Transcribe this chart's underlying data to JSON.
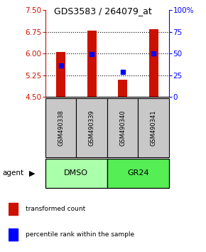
{
  "title": "GDS3583 / 264079_at",
  "categories": [
    "GSM490338",
    "GSM490339",
    "GSM490340",
    "GSM490341"
  ],
  "bar_values": [
    6.05,
    6.8,
    5.1,
    6.85
  ],
  "bar_bottom": 4.5,
  "bar_color": "#cc1100",
  "blue_marker_values": [
    5.6,
    5.97,
    5.37,
    6.0
  ],
  "blue_marker_color": "#0000ff",
  "ylim_left": [
    4.5,
    7.5
  ],
  "ylim_right": [
    0,
    100
  ],
  "yticks_left": [
    4.5,
    5.25,
    6.0,
    6.75,
    7.5
  ],
  "yticks_right": [
    0,
    25,
    50,
    75,
    100
  ],
  "ytick_labels_right": [
    "0",
    "25",
    "50",
    "75",
    "100%"
  ],
  "grid_lines": [
    5.25,
    6.0,
    6.75
  ],
  "dmso_color": "#aaffaa",
  "gr24_color": "#55ee55",
  "gray_color": "#c8c8c8",
  "agent_text": "agent",
  "legend_items": [
    {
      "color": "#cc1100",
      "label": "transformed count"
    },
    {
      "color": "#0000ff",
      "label": "percentile rank within the sample"
    }
  ],
  "bar_width": 0.3,
  "left_axis_color": "#cc1100",
  "right_axis_color": "#0000ff"
}
